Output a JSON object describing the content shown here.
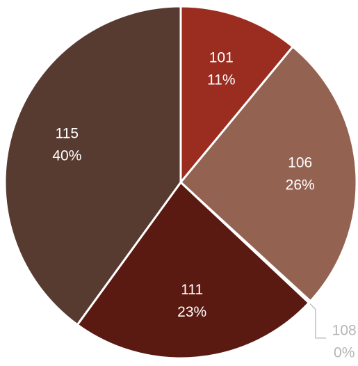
{
  "chart_data": {
    "type": "pie",
    "categories": [
      "101",
      "106",
      "108",
      "111",
      "115"
    ],
    "values": [
      11,
      26,
      0,
      23,
      40
    ],
    "value_labels": [
      "11%",
      "26%",
      "0%",
      "23%",
      "40%"
    ],
    "colors": [
      "#9b2d20",
      "#946251",
      "#a8a8a8",
      "#5a1a12",
      "#573a30"
    ]
  }
}
